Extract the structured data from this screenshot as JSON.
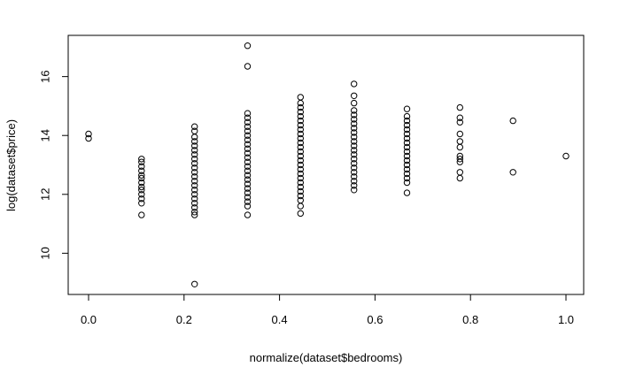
{
  "chart_data": {
    "type": "scatter",
    "title": "",
    "xlabel": "normalize(dataset$bedrooms)",
    "ylabel": "log(dataset$price)",
    "xlim": [
      0.0,
      1.0
    ],
    "ylim": [
      8.9,
      17.1
    ],
    "x_ticks": [
      0.0,
      0.2,
      0.4,
      0.6,
      0.8,
      1.0
    ],
    "x_tick_labels": [
      "0.0",
      "0.2",
      "0.4",
      "0.6",
      "0.8",
      "1.0"
    ],
    "y_ticks": [
      10,
      12,
      14,
      16
    ],
    "y_tick_labels": [
      "10",
      "12",
      "14",
      "16"
    ],
    "grid": false,
    "legend": "none",
    "marker": "open-circle",
    "color": "#000000",
    "series": [
      {
        "points": [
          {
            "x": 0.0,
            "y": 14.05
          },
          {
            "x": 0.0,
            "y": 13.9
          },
          {
            "x": 0.111,
            "y": 13.2
          },
          {
            "x": 0.111,
            "y": 13.1
          },
          {
            "x": 0.111,
            "y": 12.95
          },
          {
            "x": 0.111,
            "y": 12.8
          },
          {
            "x": 0.111,
            "y": 12.65
          },
          {
            "x": 0.111,
            "y": 12.55
          },
          {
            "x": 0.111,
            "y": 12.4
          },
          {
            "x": 0.111,
            "y": 12.25
          },
          {
            "x": 0.111,
            "y": 12.15
          },
          {
            "x": 0.111,
            "y": 12.0
          },
          {
            "x": 0.111,
            "y": 11.85
          },
          {
            "x": 0.111,
            "y": 11.7
          },
          {
            "x": 0.111,
            "y": 11.3
          },
          {
            "x": 0.222,
            "y": 14.3
          },
          {
            "x": 0.222,
            "y": 14.15
          },
          {
            "x": 0.222,
            "y": 13.95
          },
          {
            "x": 0.222,
            "y": 13.8
          },
          {
            "x": 0.222,
            "y": 13.65
          },
          {
            "x": 0.222,
            "y": 13.5
          },
          {
            "x": 0.222,
            "y": 13.35
          },
          {
            "x": 0.222,
            "y": 13.2
          },
          {
            "x": 0.222,
            "y": 13.05
          },
          {
            "x": 0.222,
            "y": 12.9
          },
          {
            "x": 0.222,
            "y": 12.75
          },
          {
            "x": 0.222,
            "y": 12.6
          },
          {
            "x": 0.222,
            "y": 12.45
          },
          {
            "x": 0.222,
            "y": 12.3
          },
          {
            "x": 0.222,
            "y": 12.15
          },
          {
            "x": 0.222,
            "y": 12.0
          },
          {
            "x": 0.222,
            "y": 11.85
          },
          {
            "x": 0.222,
            "y": 11.7
          },
          {
            "x": 0.222,
            "y": 11.55
          },
          {
            "x": 0.222,
            "y": 11.4
          },
          {
            "x": 0.222,
            "y": 11.3
          },
          {
            "x": 0.222,
            "y": 8.95
          },
          {
            "x": 0.333,
            "y": 17.05
          },
          {
            "x": 0.333,
            "y": 16.35
          },
          {
            "x": 0.333,
            "y": 14.75
          },
          {
            "x": 0.333,
            "y": 14.6
          },
          {
            "x": 0.333,
            "y": 14.45
          },
          {
            "x": 0.333,
            "y": 14.3
          },
          {
            "x": 0.333,
            "y": 14.15
          },
          {
            "x": 0.333,
            "y": 14.0
          },
          {
            "x": 0.333,
            "y": 13.85
          },
          {
            "x": 0.333,
            "y": 13.7
          },
          {
            "x": 0.333,
            "y": 13.55
          },
          {
            "x": 0.333,
            "y": 13.4
          },
          {
            "x": 0.333,
            "y": 13.25
          },
          {
            "x": 0.333,
            "y": 13.1
          },
          {
            "x": 0.333,
            "y": 12.95
          },
          {
            "x": 0.333,
            "y": 12.8
          },
          {
            "x": 0.333,
            "y": 12.65
          },
          {
            "x": 0.333,
            "y": 12.5
          },
          {
            "x": 0.333,
            "y": 12.35
          },
          {
            "x": 0.333,
            "y": 12.2
          },
          {
            "x": 0.333,
            "y": 12.05
          },
          {
            "x": 0.333,
            "y": 11.9
          },
          {
            "x": 0.333,
            "y": 11.75
          },
          {
            "x": 0.333,
            "y": 11.6
          },
          {
            "x": 0.333,
            "y": 11.3
          },
          {
            "x": 0.444,
            "y": 15.3
          },
          {
            "x": 0.444,
            "y": 15.1
          },
          {
            "x": 0.444,
            "y": 14.95
          },
          {
            "x": 0.444,
            "y": 14.8
          },
          {
            "x": 0.444,
            "y": 14.65
          },
          {
            "x": 0.444,
            "y": 14.5
          },
          {
            "x": 0.444,
            "y": 14.35
          },
          {
            "x": 0.444,
            "y": 14.2
          },
          {
            "x": 0.444,
            "y": 14.05
          },
          {
            "x": 0.444,
            "y": 13.9
          },
          {
            "x": 0.444,
            "y": 13.75
          },
          {
            "x": 0.444,
            "y": 13.6
          },
          {
            "x": 0.444,
            "y": 13.45
          },
          {
            "x": 0.444,
            "y": 13.3
          },
          {
            "x": 0.444,
            "y": 13.15
          },
          {
            "x": 0.444,
            "y": 13.0
          },
          {
            "x": 0.444,
            "y": 12.85
          },
          {
            "x": 0.444,
            "y": 12.7
          },
          {
            "x": 0.444,
            "y": 12.55
          },
          {
            "x": 0.444,
            "y": 12.4
          },
          {
            "x": 0.444,
            "y": 12.25
          },
          {
            "x": 0.444,
            "y": 12.1
          },
          {
            "x": 0.444,
            "y": 11.95
          },
          {
            "x": 0.444,
            "y": 11.8
          },
          {
            "x": 0.444,
            "y": 11.6
          },
          {
            "x": 0.444,
            "y": 11.35
          },
          {
            "x": 0.556,
            "y": 15.75
          },
          {
            "x": 0.556,
            "y": 15.35
          },
          {
            "x": 0.556,
            "y": 15.1
          },
          {
            "x": 0.556,
            "y": 14.85
          },
          {
            "x": 0.556,
            "y": 14.7
          },
          {
            "x": 0.556,
            "y": 14.55
          },
          {
            "x": 0.556,
            "y": 14.4
          },
          {
            "x": 0.556,
            "y": 14.25
          },
          {
            "x": 0.556,
            "y": 14.1
          },
          {
            "x": 0.556,
            "y": 13.95
          },
          {
            "x": 0.556,
            "y": 13.8
          },
          {
            "x": 0.556,
            "y": 13.65
          },
          {
            "x": 0.556,
            "y": 13.5
          },
          {
            "x": 0.556,
            "y": 13.35
          },
          {
            "x": 0.556,
            "y": 13.2
          },
          {
            "x": 0.556,
            "y": 13.05
          },
          {
            "x": 0.556,
            "y": 12.9
          },
          {
            "x": 0.556,
            "y": 12.75
          },
          {
            "x": 0.556,
            "y": 12.6
          },
          {
            "x": 0.556,
            "y": 12.45
          },
          {
            "x": 0.556,
            "y": 12.3
          },
          {
            "x": 0.556,
            "y": 12.15
          },
          {
            "x": 0.667,
            "y": 14.9
          },
          {
            "x": 0.667,
            "y": 14.65
          },
          {
            "x": 0.667,
            "y": 14.5
          },
          {
            "x": 0.667,
            "y": 14.35
          },
          {
            "x": 0.667,
            "y": 14.2
          },
          {
            "x": 0.667,
            "y": 14.05
          },
          {
            "x": 0.667,
            "y": 13.9
          },
          {
            "x": 0.667,
            "y": 13.75
          },
          {
            "x": 0.667,
            "y": 13.6
          },
          {
            "x": 0.667,
            "y": 13.45
          },
          {
            "x": 0.667,
            "y": 13.3
          },
          {
            "x": 0.667,
            "y": 13.15
          },
          {
            "x": 0.667,
            "y": 13.0
          },
          {
            "x": 0.667,
            "y": 12.85
          },
          {
            "x": 0.667,
            "y": 12.7
          },
          {
            "x": 0.667,
            "y": 12.55
          },
          {
            "x": 0.667,
            "y": 12.4
          },
          {
            "x": 0.667,
            "y": 12.05
          },
          {
            "x": 0.778,
            "y": 14.95
          },
          {
            "x": 0.778,
            "y": 14.6
          },
          {
            "x": 0.778,
            "y": 14.45
          },
          {
            "x": 0.778,
            "y": 14.05
          },
          {
            "x": 0.778,
            "y": 13.8
          },
          {
            "x": 0.778,
            "y": 13.6
          },
          {
            "x": 0.778,
            "y": 13.3
          },
          {
            "x": 0.778,
            "y": 13.2
          },
          {
            "x": 0.778,
            "y": 13.1
          },
          {
            "x": 0.778,
            "y": 12.75
          },
          {
            "x": 0.778,
            "y": 12.55
          },
          {
            "x": 0.889,
            "y": 14.5
          },
          {
            "x": 0.889,
            "y": 12.75
          },
          {
            "x": 1.0,
            "y": 13.3
          }
        ]
      }
    ]
  }
}
